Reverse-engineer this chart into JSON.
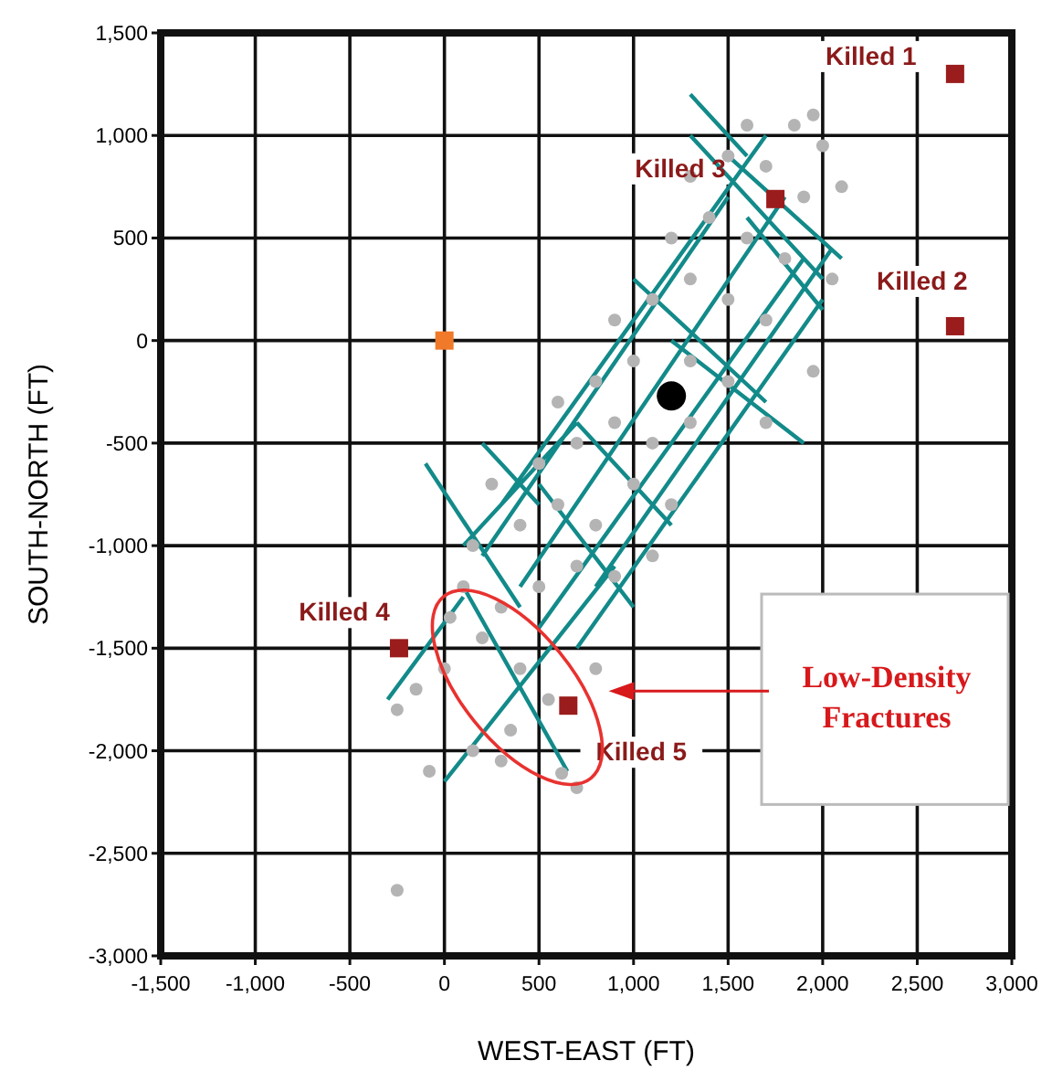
{
  "chart_data": {
    "type": "scatter",
    "xlabel": "WEST-EAST (FT)",
    "ylabel": "SOUTH-NORTH (FT)",
    "xlim": [
      -1500,
      3000
    ],
    "xticks": [
      {
        "value": -1500,
        "label": "-1,500"
      },
      {
        "value": -1000,
        "label": "-1,000"
      },
      -500,
      0,
      500,
      {
        "value": 1000,
        "label": "1,000"
      },
      {
        "value": 1500,
        "label": "1,500"
      },
      {
        "value": 2000,
        "label": "2,000"
      },
      {
        "value": 2500,
        "label": "2,500"
      },
      {
        "value": 3000,
        "label": "3,000"
      }
    ],
    "ylim": [
      -3000,
      1500
    ],
    "yticks": [
      {
        "value": -3000,
        "label": "-3,000"
      },
      {
        "value": -2500,
        "label": "-2,500"
      },
      {
        "value": -2000,
        "label": "-2,000"
      },
      {
        "value": -1500,
        "label": "-1,500"
      },
      {
        "value": -1000,
        "label": "-1,000"
      },
      -500,
      0,
      500,
      {
        "value": 1000,
        "label": "1,000"
      },
      {
        "value": 1500,
        "label": "1,500"
      }
    ],
    "grid": true,
    "series": [
      {
        "type": "scatter",
        "marker": "circle",
        "color": "#b4b4b4",
        "x": [
          -250,
          -80,
          150,
          300,
          620,
          700,
          -250,
          -150,
          0,
          30,
          200,
          400,
          350,
          550,
          800,
          100,
          300,
          500,
          700,
          900,
          1100,
          150,
          400,
          600,
          800,
          1000,
          1200,
          250,
          500,
          700,
          900,
          1100,
          1300,
          600,
          800,
          1000,
          1300,
          1500,
          1700,
          900,
          1100,
          1300,
          1500,
          1700,
          1950,
          1200,
          1400,
          1600,
          1800,
          2050,
          1300,
          1500,
          1700,
          1900,
          2100,
          1600,
          1850,
          2000,
          1950
        ],
        "values": [
          -2680,
          -2100,
          -2000,
          -2050,
          -2110,
          -2180,
          -1800,
          -1700,
          -1600,
          -1350,
          -1450,
          -1600,
          -1900,
          -1750,
          -1600,
          -1200,
          -1300,
          -1200,
          -1100,
          -1150,
          -1050,
          -1000,
          -900,
          -800,
          -900,
          -700,
          -800,
          -700,
          -600,
          -500,
          -400,
          -500,
          -400,
          -300,
          -200,
          -100,
          -100,
          -200,
          -400,
          100,
          200,
          300,
          200,
          100,
          -150,
          500,
          600,
          500,
          400,
          300,
          800,
          900,
          850,
          700,
          750,
          1050,
          1050,
          950,
          1100
        ]
      },
      {
        "type": "line",
        "color": "#138a8a",
        "line_style": "solid",
        "marker": "none",
        "x": [
          -300,
          100,
          null,
          0,
          900,
          null,
          200,
          1500,
          null,
          400,
          1800,
          null,
          500,
          1900,
          null,
          700,
          2000,
          null,
          300,
          1700,
          null,
          800,
          2050,
          null,
          100,
          700,
          null,
          100,
          650,
          null,
          -100,
          400,
          null,
          1300,
          2000,
          null,
          1500,
          2100,
          null,
          1000,
          1700,
          null,
          1200,
          1900,
          null,
          700,
          1200,
          null,
          500,
          1000,
          null,
          1600,
          2000,
          null,
          200,
          500,
          null,
          1300,
          1600
        ],
        "values": [
          -1750,
          -1250,
          null,
          -2150,
          -1100,
          null,
          -1050,
          700,
          null,
          -1200,
          700,
          null,
          -1400,
          400,
          null,
          -1500,
          200,
          null,
          -800,
          1000,
          null,
          -1200,
          450,
          null,
          -1000,
          -400,
          null,
          -1200,
          -2100,
          null,
          -600,
          -1300,
          null,
          1000,
          300,
          null,
          900,
          400,
          null,
          300,
          -300,
          null,
          0,
          -500,
          null,
          -400,
          -900,
          null,
          -700,
          -1300,
          null,
          600,
          150,
          null,
          -500,
          -800,
          null,
          1200,
          900
        ]
      },
      {
        "type": "scatter",
        "marker": "square",
        "color": "#9b1c1c",
        "x": [
          2700,
          2700,
          1750,
          -240,
          655
        ],
        "values": [
          1300,
          70,
          690,
          -1500,
          -1780
        ]
      },
      {
        "type": "scatter",
        "marker": "square",
        "color": "#f07a2a",
        "x": [
          0
        ],
        "values": [
          0
        ]
      },
      {
        "type": "scatter",
        "marker": "circle",
        "color": "#000000",
        "x": [
          1200
        ],
        "values": [
          -270
        ]
      }
    ],
    "annotations": [
      {
        "text": "Killed 1",
        "x": 2700,
        "y": 1300
      },
      {
        "text": "Killed 2",
        "x": 2700,
        "y": 70
      },
      {
        "text": "Killed 3",
        "x": 1750,
        "y": 690
      },
      {
        "text": "Killed 4",
        "x": -240,
        "y": -1500
      },
      {
        "text": "Killed 5",
        "x": 655,
        "y": -1780
      },
      "Low-Density Fractures"
    ]
  }
}
